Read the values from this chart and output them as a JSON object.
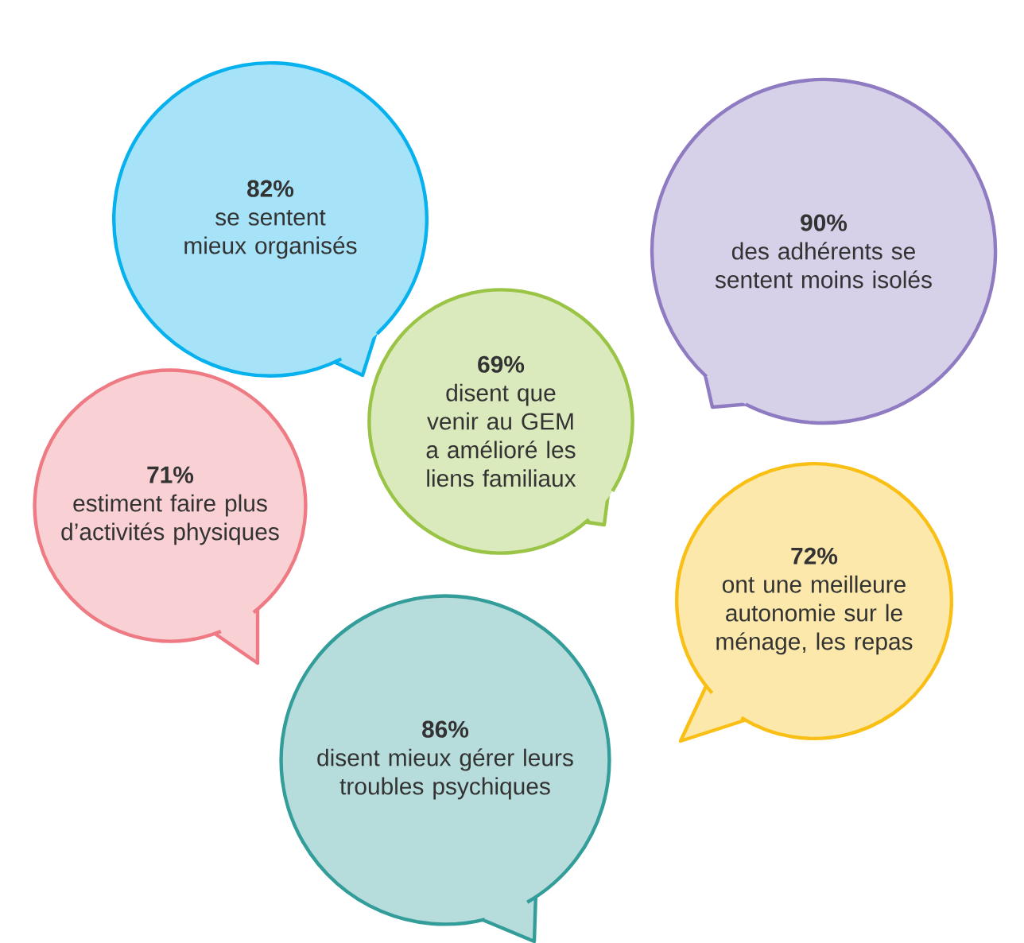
{
  "chart_data": {
    "type": "other",
    "categories": [
      "se sentent mieux organisés",
      "des adhérents se sentent moins isolés",
      "disent que venir au GEM a amélioré les liens familiaux",
      "estiment faire plus d’activités physiques",
      "ont une meilleure autonomie sur le ménage, les repas",
      "disent mieux gérer leurs troubles psychiques"
    ],
    "values": [
      82,
      90,
      69,
      71,
      72,
      86
    ],
    "value_labels": [
      "82%",
      "90%",
      "69%",
      "71%",
      "72%",
      "86%"
    ],
    "colors": [
      "#a6e3f9",
      "#d7d0e9",
      "#dbeabd",
      "#f9d0d3",
      "#fde8ab",
      "#b6dcdb"
    ]
  }
}
